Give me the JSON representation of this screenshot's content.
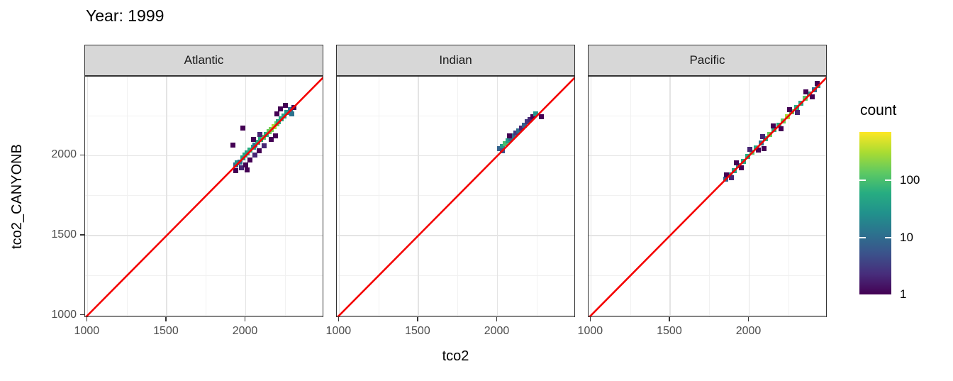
{
  "title": "Year: 1999",
  "colors": {
    "identity_line": "#f40202",
    "strip_background": "#d7d7d7",
    "panel_border": "#333333",
    "grid_major": "#e4e4e4",
    "grid_minor": "#f1f1f1",
    "tick_text": "#4d4d4d"
  },
  "chart_data": {
    "type": "heatmap",
    "bin_type": "bin2d-square-bins",
    "x": "tco2",
    "y": "tco2_CANYONB",
    "xlim": [
      985,
      2495
    ],
    "ylim": [
      985,
      2495
    ],
    "x_ticks": [
      1000,
      1500,
      2000
    ],
    "y_ticks": [
      1000,
      1500,
      2000
    ],
    "minor_ticks": [
      1250,
      1750,
      2250
    ],
    "grid": "on",
    "reference_line": "y = x (red identity line)",
    "legend": {
      "title": "count",
      "position": "right",
      "scale": "log10",
      "ticks": [
        1,
        10,
        100
      ],
      "max": 700,
      "viridis_stops": [
        [
          0,
          "#440154"
        ],
        [
          0.125,
          "#472d7b"
        ],
        [
          0.25,
          "#3b528b"
        ],
        [
          0.375,
          "#2c728e"
        ],
        [
          0.5,
          "#21918c"
        ],
        [
          0.625,
          "#27ad81"
        ],
        [
          0.75,
          "#5ec962"
        ],
        [
          0.875,
          "#aadc32"
        ],
        [
          1,
          "#fde725"
        ]
      ]
    },
    "facets": [
      {
        "label": "Atlantic",
        "bins": [
          [
            1935,
            1942,
            8
          ],
          [
            1948,
            1955,
            30
          ],
          [
            1966,
            1962,
            10
          ],
          [
            1980,
            1986,
            40
          ],
          [
            1997,
            2003,
            50
          ],
          [
            2011,
            2018,
            40
          ],
          [
            2029,
            2035,
            60
          ],
          [
            2047,
            2052,
            40
          ],
          [
            2060,
            2068,
            12
          ],
          [
            2078,
            2084,
            50
          ],
          [
            2096,
            2101,
            60
          ],
          [
            2110,
            2117,
            120
          ],
          [
            2128,
            2133,
            60
          ],
          [
            2146,
            2150,
            150
          ],
          [
            2159,
            2165,
            180
          ],
          [
            2177,
            2180,
            300
          ],
          [
            2195,
            2198,
            150
          ],
          [
            2208,
            2213,
            60
          ],
          [
            2226,
            2229,
            50
          ],
          [
            2244,
            2247,
            40
          ],
          [
            2262,
            2272,
            30
          ],
          [
            2280,
            2288,
            10
          ],
          [
            2293,
            2262,
            12
          ],
          [
            1917,
            2068,
            1
          ],
          [
            1984,
            2171,
            1
          ],
          [
            1939,
            1908,
            1
          ],
          [
            1971,
            1926,
            2
          ],
          [
            2002,
            1944,
            1
          ],
          [
            2029,
            1971,
            1
          ],
          [
            2060,
            2006,
            2
          ],
          [
            2083,
            2033,
            1
          ],
          [
            2051,
            2100,
            1
          ],
          [
            2091,
            2131,
            2
          ],
          [
            2159,
            2100,
            1
          ],
          [
            2190,
            2126,
            1
          ],
          [
            2199,
            2260,
            1
          ],
          [
            2221,
            2295,
            1
          ],
          [
            2253,
            2313,
            1
          ],
          [
            2306,
            2300,
            1
          ],
          [
            2011,
            1913,
            1
          ],
          [
            2115,
            2060,
            2
          ]
        ]
      },
      {
        "label": "Indian",
        "bins": [
          [
            2015,
            2046,
            8
          ],
          [
            2033,
            2059,
            30
          ],
          [
            2047,
            2077,
            100
          ],
          [
            2065,
            2091,
            40
          ],
          [
            2083,
            2108,
            10
          ],
          [
            2100,
            2126,
            12
          ],
          [
            2118,
            2144,
            3
          ],
          [
            2136,
            2157,
            10
          ],
          [
            2154,
            2175,
            2
          ],
          [
            2172,
            2193,
            8
          ],
          [
            2190,
            2211,
            3
          ],
          [
            2208,
            2228,
            2
          ],
          [
            2226,
            2246,
            1
          ],
          [
            2244,
            2264,
            30
          ],
          [
            2078,
            2126,
            1
          ],
          [
            2033,
            2033,
            5
          ],
          [
            2276,
            2246,
            1
          ]
        ]
      },
      {
        "label": "Pacific",
        "bins": [
          [
            1850,
            1852,
            8
          ],
          [
            1878,
            1882,
            30
          ],
          [
            1906,
            1908,
            40
          ],
          [
            1934,
            1938,
            30
          ],
          [
            1962,
            1966,
            50
          ],
          [
            1990,
            1995,
            60
          ],
          [
            2018,
            2022,
            120
          ],
          [
            2046,
            2050,
            50
          ],
          [
            2074,
            2078,
            12
          ],
          [
            2102,
            2106,
            60
          ],
          [
            2130,
            2134,
            150
          ],
          [
            2158,
            2162,
            60
          ],
          [
            2186,
            2190,
            50
          ],
          [
            2214,
            2218,
            150
          ],
          [
            2242,
            2246,
            300
          ],
          [
            2270,
            2274,
            150
          ],
          [
            2298,
            2302,
            60
          ],
          [
            2326,
            2330,
            50
          ],
          [
            2354,
            2358,
            120
          ],
          [
            2382,
            2386,
            40
          ],
          [
            2410,
            2414,
            10
          ],
          [
            2435,
            2438,
            30
          ],
          [
            1855,
            1880,
            1
          ],
          [
            1890,
            1860,
            2
          ],
          [
            1920,
            1955,
            1
          ],
          [
            1950,
            1925,
            1
          ],
          [
            2005,
            2040,
            2
          ],
          [
            2060,
            2035,
            1
          ],
          [
            2096,
            2045,
            1
          ],
          [
            2085,
            2120,
            2
          ],
          [
            2150,
            2185,
            1
          ],
          [
            2200,
            2170,
            1
          ],
          [
            2255,
            2290,
            1
          ],
          [
            2305,
            2270,
            2
          ],
          [
            2360,
            2400,
            1
          ],
          [
            2400,
            2370,
            1
          ],
          [
            2428,
            2455,
            1
          ]
        ]
      }
    ]
  }
}
